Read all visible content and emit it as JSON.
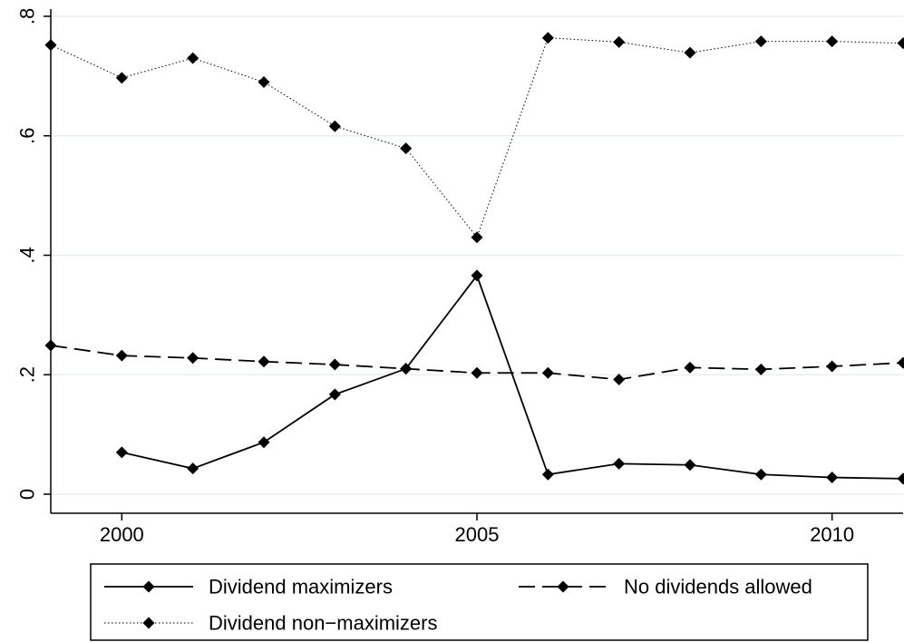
{
  "chart_data": {
    "type": "line",
    "title": "",
    "xlabel": "",
    "ylabel": "",
    "xlim": [
      1999,
      2011
    ],
    "ylim": [
      0,
      0.8
    ],
    "x_ticks": [
      2000,
      2005,
      2010
    ],
    "x_tick_labels": [
      "2000",
      "2005",
      "2010"
    ],
    "y_ticks": [
      0,
      0.2,
      0.4,
      0.6,
      0.8
    ],
    "y_tick_labels": [
      "0",
      ".2",
      ".4",
      ".6",
      ".8"
    ],
    "grid": true,
    "legend_position": "bottom",
    "series": [
      {
        "name": "Dividend maximizers",
        "line_style": "solid",
        "marker": "diamond",
        "x": [
          2000,
          2001,
          2002,
          2003,
          2004,
          2005,
          2006,
          2007,
          2008,
          2009,
          2010,
          2011
        ],
        "values": [
          0.07,
          0.043,
          0.087,
          0.167,
          0.21,
          0.366,
          0.033,
          0.051,
          0.049,
          0.033,
          0.028,
          0.026
        ]
      },
      {
        "name": "No dividends allowed",
        "line_style": "dashed",
        "marker": "diamond",
        "x": [
          1999,
          2000,
          2001,
          2002,
          2003,
          2004,
          2005,
          2006,
          2007,
          2008,
          2009,
          2010,
          2011
        ],
        "values": [
          0.249,
          0.232,
          0.228,
          0.222,
          0.217,
          0.21,
          0.203,
          0.203,
          0.192,
          0.212,
          0.209,
          0.214,
          0.22
        ]
      },
      {
        "name": "Dividend non−maximizers",
        "line_style": "dotted",
        "marker": "diamond",
        "x": [
          1999,
          2000,
          2001,
          2002,
          2003,
          2004,
          2005,
          2006,
          2007,
          2008,
          2009,
          2010,
          2011
        ],
        "values": [
          0.752,
          0.697,
          0.73,
          0.69,
          0.616,
          0.579,
          0.43,
          0.764,
          0.757,
          0.739,
          0.758,
          0.758,
          0.755
        ]
      }
    ]
  }
}
